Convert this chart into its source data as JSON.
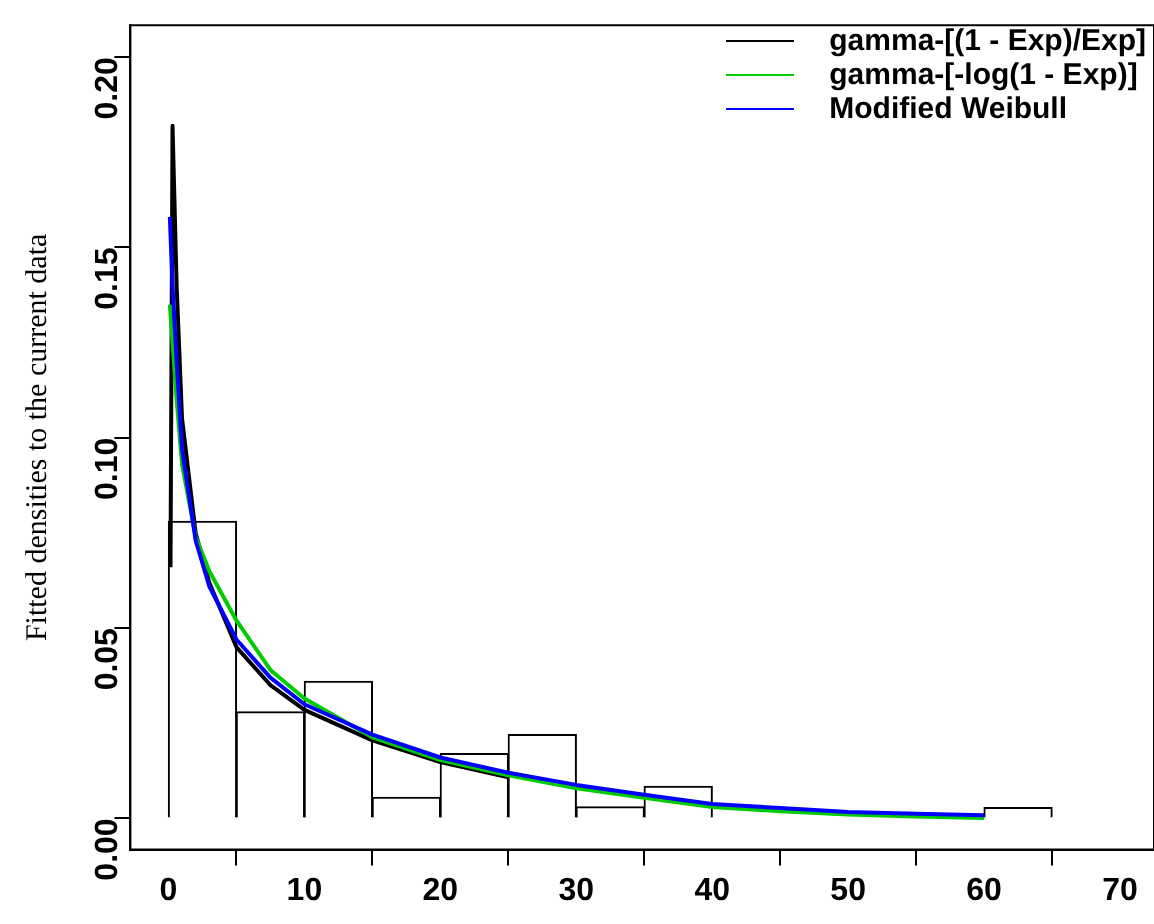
{
  "chart_data": {
    "type": "histogram",
    "ylabel": "Fitted densities to the current data",
    "bins": [
      0,
      5,
      10,
      15,
      20,
      25,
      30,
      35,
      40,
      45,
      50,
      55,
      60,
      65
    ],
    "values": [
      0.078,
      0.028,
      0.036,
      0.0055,
      0.017,
      0.022,
      0.003,
      0.0084,
      0,
      0,
      0,
      0,
      0.0028
    ],
    "color": "#ffffff",
    "series": [
      {
        "name": "gamma-[(1 - Exp)/Exp]",
        "type": "line",
        "color": "#000000",
        "x": [
          0.15,
          0.3,
          0.6,
          1,
          2,
          3,
          5,
          7.5,
          10,
          15,
          20,
          25
        ],
        "values": [
          0.066,
          0.182,
          0.14,
          0.105,
          0.075,
          0.062,
          0.045,
          0.035,
          0.0285,
          0.0205,
          0.0148,
          0.0108
        ]
      },
      {
        "name": "gamma-[-log(1 - Exp)]",
        "type": "line",
        "color": "#00cc00",
        "x": [
          0.1,
          0.3,
          0.6,
          1,
          2,
          3,
          5,
          7.5,
          10,
          15,
          20,
          25,
          30,
          35,
          40,
          45,
          50,
          55,
          60
        ],
        "values": [
          0.135,
          0.125,
          0.11,
          0.093,
          0.074,
          0.065,
          0.052,
          0.039,
          0.0315,
          0.0213,
          0.0153,
          0.0113,
          0.0079,
          0.0054,
          0.003,
          0.0019,
          0.001,
          0.0005,
          0.0001
        ]
      },
      {
        "name": "Modified Weibull",
        "type": "line",
        "color": "#0000ff",
        "x": [
          0.1,
          0.3,
          0.6,
          1,
          2,
          3,
          5,
          7.5,
          10,
          15,
          20,
          25,
          30,
          35,
          40,
          45,
          50,
          55,
          60
        ],
        "values": [
          0.158,
          0.14,
          0.12,
          0.097,
          0.073,
          0.061,
          0.047,
          0.037,
          0.03,
          0.022,
          0.016,
          0.012,
          0.0088,
          0.0062,
          0.0038,
          0.0027,
          0.0017,
          0.0012,
          0.0008
        ]
      }
    ],
    "xlim": [
      -2.8,
      72.5
    ],
    "xticks": [
      0,
      10,
      20,
      30,
      40,
      50,
      60,
      70
    ],
    "ylim": [
      -0.0082,
      0.2084
    ],
    "yticks": [
      {
        "value": 0,
        "label": "0.00"
      },
      {
        "value": 0.05,
        "label": "0.05"
      },
      {
        "value": 0.1,
        "label": "0.10"
      },
      {
        "value": 0.15,
        "label": "0.15"
      },
      {
        "value": 0.2,
        "label": "0.20"
      }
    ],
    "grid": false,
    "legend": "top right"
  }
}
